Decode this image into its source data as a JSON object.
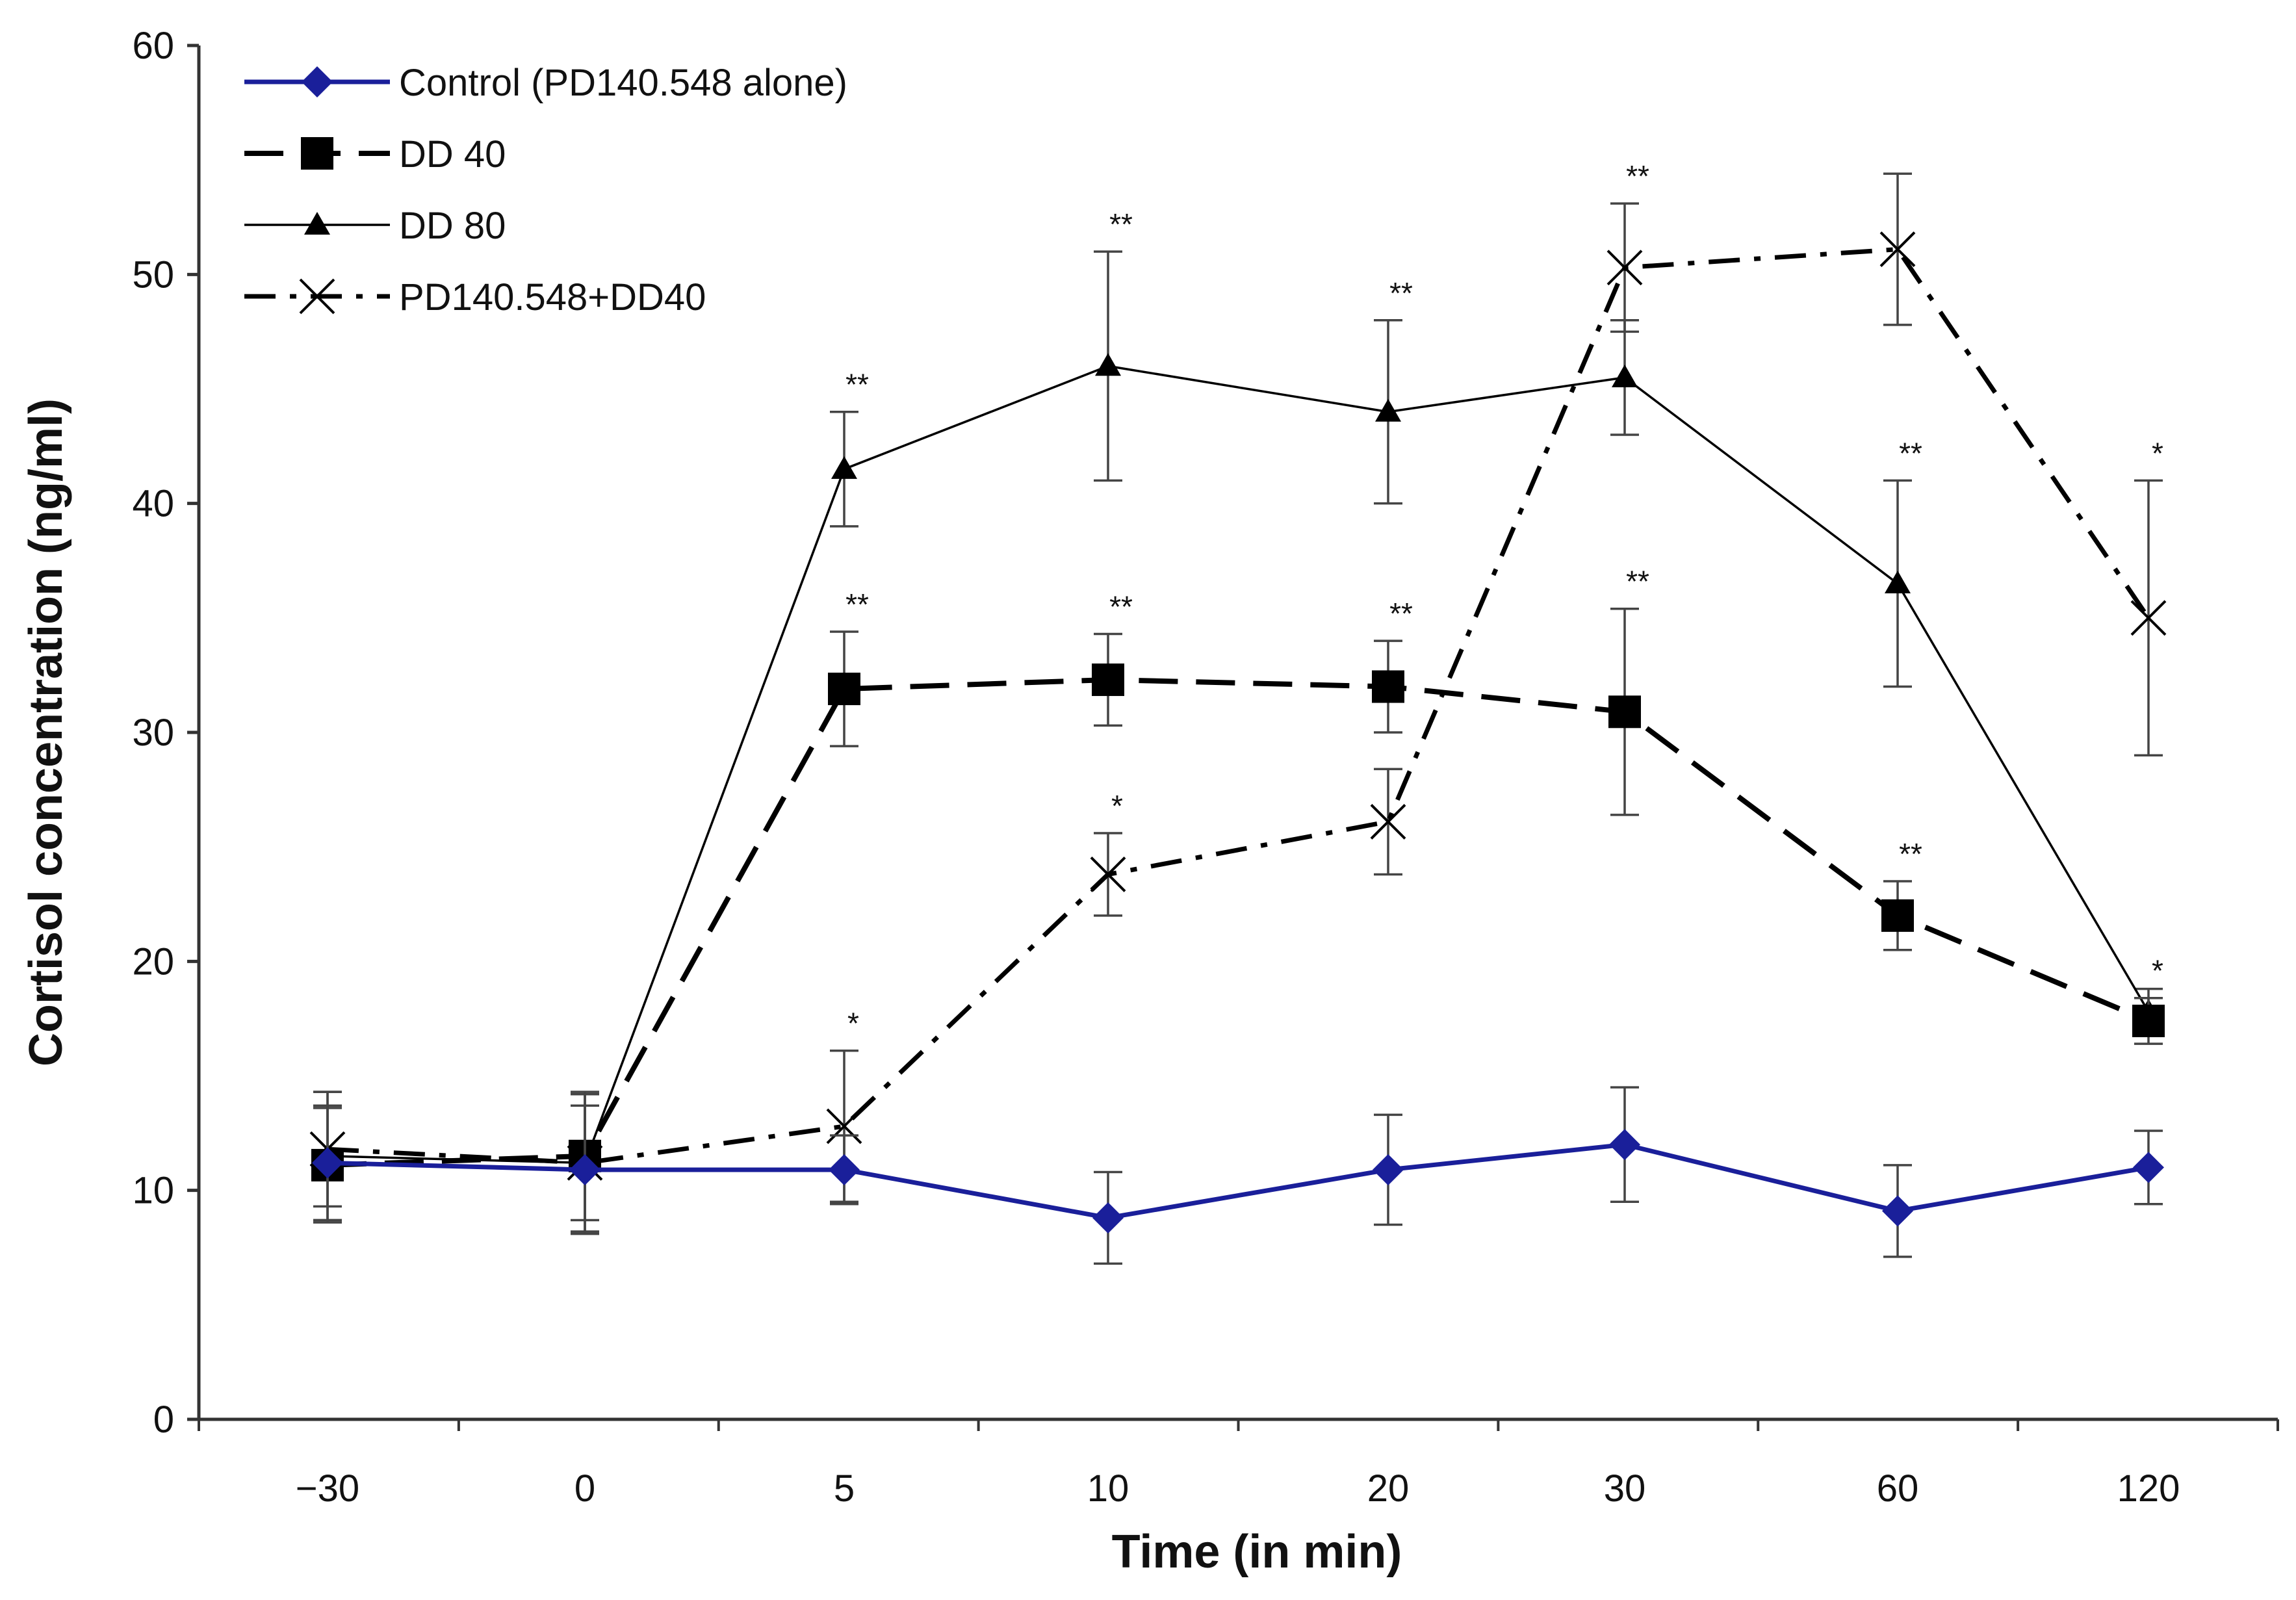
{
  "chart_data": {
    "type": "line",
    "title": "",
    "xlabel": "Time (in min)",
    "ylabel": "Cortisol concentration (ng/ml)",
    "categories": [
      "−30",
      "0",
      "5",
      "10",
      "20",
      "30",
      "60",
      "120"
    ],
    "ylim": [
      0,
      60
    ],
    "yticks": [
      0,
      10,
      20,
      30,
      40,
      50,
      60
    ],
    "grid": false,
    "legend_position": "top-left",
    "series": [
      {
        "name": "Control (PD140.548 alone)",
        "color": "#1a1f9a",
        "marker": "diamond",
        "line_style": "solid-thick",
        "values": [
          11.2,
          10.9,
          10.9,
          8.8,
          10.9,
          12.0,
          9.1,
          11.0
        ],
        "errors": [
          2.5,
          2.8,
          1.5,
          2.0,
          2.4,
          2.5,
          2.0,
          1.6
        ],
        "stars": [
          "",
          "",
          "",
          "",
          "",
          "",
          "",
          ""
        ]
      },
      {
        "name": "DD 40",
        "color": "#000000",
        "marker": "square",
        "line_style": "dashed",
        "values": [
          11.1,
          11.5,
          31.9,
          32.3,
          32.0,
          30.9,
          22.0,
          17.4
        ],
        "errors": [
          2.5,
          2.8,
          2.5,
          2.0,
          2.0,
          4.5,
          1.5,
          1.0
        ],
        "stars": [
          "",
          "",
          "**",
          "**",
          "**",
          "**",
          "**",
          "*"
        ]
      },
      {
        "name": "DD 80",
        "color": "#000000",
        "marker": "triangle",
        "line_style": "solid-thin",
        "values": [
          11.5,
          11.2,
          41.5,
          46.0,
          44.0,
          45.5,
          36.5,
          17.8
        ],
        "errors": [
          2.8,
          3.0,
          2.5,
          5.0,
          4.0,
          2.5,
          4.5,
          1.0
        ],
        "stars": [
          "",
          "",
          "**",
          "**",
          "**",
          "",
          "**",
          ""
        ]
      },
      {
        "name": "PD140.548+DD40",
        "color": "#000000",
        "marker": "x",
        "line_style": "dash-dot",
        "values": [
          11.8,
          11.2,
          12.8,
          23.8,
          26.1,
          50.3,
          51.1,
          35.0
        ],
        "errors": [
          2.5,
          3.0,
          3.3,
          1.8,
          2.3,
          2.8,
          3.3,
          6.0
        ],
        "stars": [
          "",
          "",
          "*",
          "*",
          "",
          "**",
          "",
          "*"
        ]
      }
    ]
  }
}
